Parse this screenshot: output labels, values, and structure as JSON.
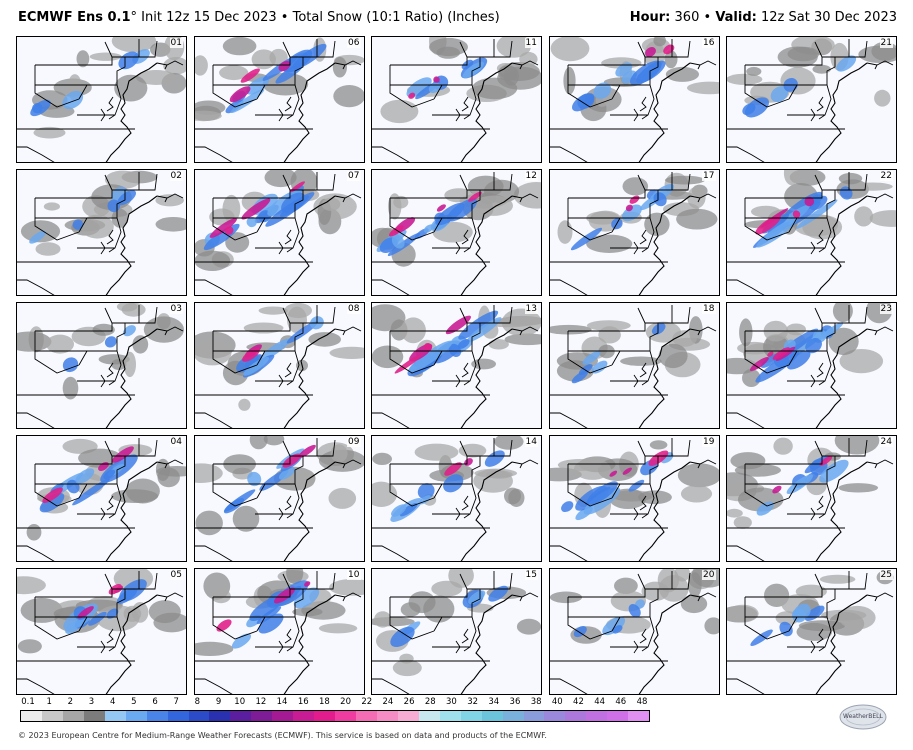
{
  "header": {
    "model": "ECMWF Ens 0.1",
    "degree": "°",
    "init": "Init 12z 15 Dec 2023",
    "bullet": "•",
    "product": "Total Snow (10:1 Ratio) (Inches)",
    "hour_label": "Hour:",
    "hour_value": "360",
    "valid_label": "Valid:",
    "valid_value": "12z Sat 30 Dec 2023"
  },
  "members": [
    "01",
    "06",
    "11",
    "16",
    "21",
    "02",
    "07",
    "12",
    "17",
    "22",
    "03",
    "08",
    "13",
    "18",
    "23",
    "04",
    "09",
    "14",
    "19",
    "24",
    "05",
    "10",
    "15",
    "20",
    "25"
  ],
  "member_intensity": [
    1,
    3,
    2,
    2,
    1,
    1,
    4,
    4,
    2,
    4,
    0,
    2,
    4,
    1,
    4,
    3,
    2,
    2,
    3,
    2,
    3,
    3,
    1,
    1,
    1
  ],
  "colorbar": {
    "ticks": [
      "0.1",
      "1",
      "2",
      "3",
      "4",
      "5",
      "6",
      "7",
      "8",
      "9",
      "10",
      "12",
      "14",
      "16",
      "18",
      "20",
      "22",
      "24",
      "26",
      "28",
      "30",
      "32",
      "34",
      "36",
      "38",
      "40",
      "42",
      "44",
      "46",
      "48"
    ],
    "colors": [
      "#ececec",
      "#c8c8c8",
      "#a6a6a6",
      "#7c7c7c",
      "#94c7f4",
      "#6aa8f0",
      "#4a84e8",
      "#3366dd",
      "#2b4bc8",
      "#2a31b0",
      "#5a1e9e",
      "#7d1c96",
      "#a31a94",
      "#c81c94",
      "#e21c8c",
      "#f03ca0",
      "#f46cb4",
      "#f68cc4",
      "#f7acd4",
      "#c8e8f0",
      "#a0e0ec",
      "#80d4e6",
      "#6cc4dc",
      "#7ab0dc",
      "#8a9cdc",
      "#9a88dc",
      "#ac78dc",
      "#c070e0",
      "#d070e8",
      "#e090f0"
    ]
  },
  "footer": {
    "credit": "© 2023 European Centre for Medium-Range Weather Forecasts (ECMWF). This service is based on data and products of the ECMWF."
  },
  "logo": {
    "text": "WeatherBELL"
  },
  "colors": {
    "map_bg": "#f8f9fe",
    "state_line": "#000000",
    "light_snow": "#8c8c8c",
    "moderate_snow": "#3f7fe8",
    "heavy_snow": "#e0208a"
  }
}
